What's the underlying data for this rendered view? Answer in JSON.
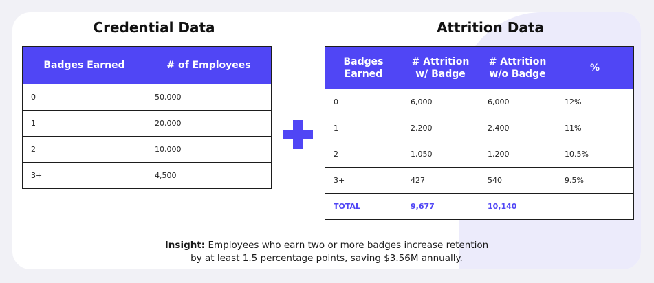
{
  "credential": {
    "title": "Credential Data",
    "headers": [
      "Badges Earned",
      "# of Employees"
    ],
    "rows": [
      [
        "0",
        "50,000"
      ],
      [
        "1",
        "20,000"
      ],
      [
        "2",
        "10,000"
      ],
      [
        "3+",
        "4,500"
      ]
    ]
  },
  "attrition": {
    "title": "Attrition Data",
    "headers": [
      "Badges Earned",
      "# Attrition w/ Badge",
      "# Attrition w/o Badge",
      "%"
    ],
    "rows": [
      [
        "0",
        "6,000",
        "6,000",
        "12%"
      ],
      [
        "1",
        "2,200",
        "2,400",
        "11%"
      ],
      [
        "2",
        "1,050",
        "1,200",
        "10.5%"
      ],
      [
        "3+",
        "427",
        "540",
        "9.5%"
      ]
    ],
    "total": [
      "TOTAL",
      "9,677",
      "10,140",
      ""
    ]
  },
  "plus_icon": "plus-icon",
  "insight": {
    "label": "Insight:",
    "line1": " Employees who earn two or more badges increase retention",
    "line2": "by at least 1.5 percentage points, saving $3.56M annually."
  },
  "colors": {
    "accent": "#5046f5",
    "background_tint": "#ecebfb"
  }
}
